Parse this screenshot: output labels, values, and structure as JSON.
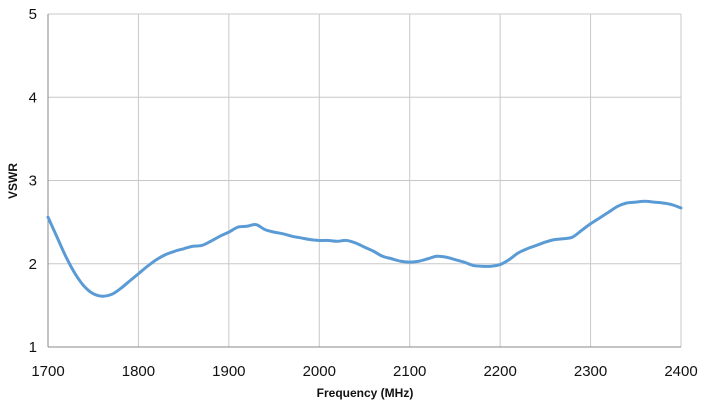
{
  "chart_data": {
    "type": "line",
    "title": "",
    "xlabel": "Frequency (MHz)",
    "ylabel": "VSWR",
    "xlim": [
      1700,
      2400
    ],
    "ylim": [
      1,
      5
    ],
    "x_ticks": [
      "1700",
      "1800",
      "1900",
      "2000",
      "2100",
      "2200",
      "2300",
      "2400"
    ],
    "y_ticks": [
      "1",
      "2",
      "3",
      "4",
      "5"
    ],
    "grid": true,
    "legend": "none",
    "colors": {
      "series": "#5b9bd5",
      "grid": "#c8c8c8",
      "axis": "#888888"
    },
    "series": [
      {
        "x": [
          1700,
          1710,
          1720,
          1730,
          1740,
          1750,
          1760,
          1770,
          1780,
          1790,
          1800,
          1810,
          1820,
          1830,
          1840,
          1850,
          1860,
          1870,
          1880,
          1890,
          1900,
          1910,
          1920,
          1930,
          1940,
          1950,
          1960,
          1970,
          1980,
          1990,
          2000,
          2010,
          2020,
          2030,
          2040,
          2050,
          2060,
          2070,
          2080,
          2090,
          2100,
          2110,
          2120,
          2130,
          2140,
          2150,
          2160,
          2170,
          2180,
          2190,
          2200,
          2210,
          2220,
          2230,
          2240,
          2250,
          2260,
          2270,
          2280,
          2290,
          2300,
          2310,
          2320,
          2330,
          2340,
          2350,
          2360,
          2370,
          2380,
          2390,
          2400
        ],
        "values": [
          2.56,
          2.32,
          2.08,
          1.88,
          1.73,
          1.64,
          1.61,
          1.63,
          1.7,
          1.79,
          1.88,
          1.97,
          2.05,
          2.11,
          2.15,
          2.18,
          2.21,
          2.22,
          2.27,
          2.33,
          2.38,
          2.44,
          2.45,
          2.47,
          2.41,
          2.38,
          2.36,
          2.33,
          2.31,
          2.29,
          2.28,
          2.28,
          2.27,
          2.28,
          2.25,
          2.2,
          2.15,
          2.09,
          2.06,
          2.03,
          2.02,
          2.03,
          2.06,
          2.09,
          2.08,
          2.05,
          2.02,
          1.98,
          1.97,
          1.97,
          1.99,
          2.05,
          2.13,
          2.18,
          2.22,
          2.26,
          2.29,
          2.3,
          2.32,
          2.4,
          2.48,
          2.55,
          2.62,
          2.69,
          2.73,
          2.74,
          2.75,
          2.74,
          2.73,
          2.71,
          2.67
        ]
      }
    ]
  }
}
